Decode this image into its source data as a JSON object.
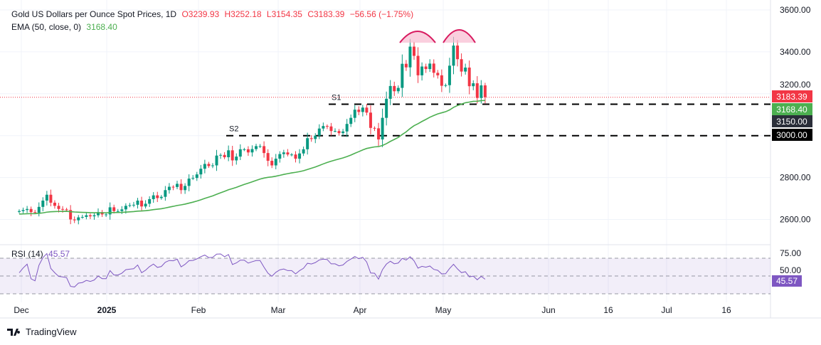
{
  "header": {
    "symbol": "Gold US Dollars per Ounce Spot Prices, 1D",
    "open": "O3239.93",
    "high": "H3252.18",
    "low": "L3154.35",
    "close": "C3183.39",
    "change": "−56.56 (−1.75%)"
  },
  "ema_legend": {
    "label": "EMA (50, close, 0)",
    "value": "3168.40"
  },
  "rsi_legend": {
    "label": "RSI (14)",
    "value": "45.57"
  },
  "footer": {
    "brand": "TradingView"
  },
  "colors": {
    "up": "#089981",
    "down": "#f23645",
    "ema": "#4caf50",
    "rsi": "#7e57c2",
    "annotation": "#d81b60"
  },
  "chart_data": {
    "type": "candlestick",
    "price_axis_ticks": [
      "3600.00",
      "3400.00",
      "3200.00",
      "2800.00",
      "2600.00"
    ],
    "ylim": [
      2560,
      3620
    ],
    "time_axis_labels": [
      "Dec",
      "2025",
      "Feb",
      "Mar",
      "Apr",
      "May",
      "Jun",
      "16",
      "Jul",
      "16"
    ],
    "closes": [
      2640,
      2645,
      2650,
      2635,
      2632,
      2660,
      2690,
      2718,
      2680,
      2665,
      2650,
      2648,
      2645,
      2600,
      2596,
      2610,
      2612,
      2620,
      2615,
      2620,
      2635,
      2624,
      2624,
      2658,
      2640,
      2640,
      2648,
      2665,
      2668,
      2670,
      2690,
      2662,
      2675,
      2697,
      2715,
      2702,
      2708,
      2740,
      2756,
      2755,
      2770,
      2740,
      2760,
      2795,
      2798,
      2815,
      2842,
      2865,
      2855,
      2858,
      2905,
      2908,
      2897,
      2930,
      2882,
      2900,
      2935,
      2935,
      2920,
      2936,
      2950,
      2950,
      2917,
      2880,
      2858,
      2890,
      2912,
      2920,
      2910,
      2910,
      2890,
      2915,
      2935,
      2988,
      2984,
      3000,
      3034,
      3046,
      3044,
      3022,
      3022,
      3012,
      3020,
      3056,
      3085,
      3124,
      3113,
      3134,
      3110,
      3037,
      3035,
      2982,
      3085,
      3176,
      3237,
      3212,
      3228,
      3343,
      3326,
      3425,
      3381,
      3288,
      3330,
      3318,
      3344,
      3300,
      3288,
      3238,
      3241,
      3334,
      3430,
      3365,
      3306,
      3325,
      3236,
      3250,
      3180,
      3240,
      3183.39
    ],
    "last_candle": {
      "open": 3239.93,
      "high": 3252.18,
      "low": 3154.35,
      "close": 3183.39
    },
    "price_labels": {
      "last": "3183.39",
      "ema": "3168.40",
      "s1": "3150.00",
      "s2": "3000.00"
    },
    "levels": [
      {
        "name": "S1",
        "value": 3150
      },
      {
        "name": "S2",
        "value": 3000
      }
    ],
    "ema": {
      "period": 50,
      "last": 3168.4
    },
    "rsi": {
      "period": 14,
      "last": 45.57,
      "ticks": [
        "75.00",
        "50.00"
      ],
      "band": [
        30,
        70
      ]
    },
    "annotations": [
      "double-top arcs over April and May highs"
    ]
  }
}
